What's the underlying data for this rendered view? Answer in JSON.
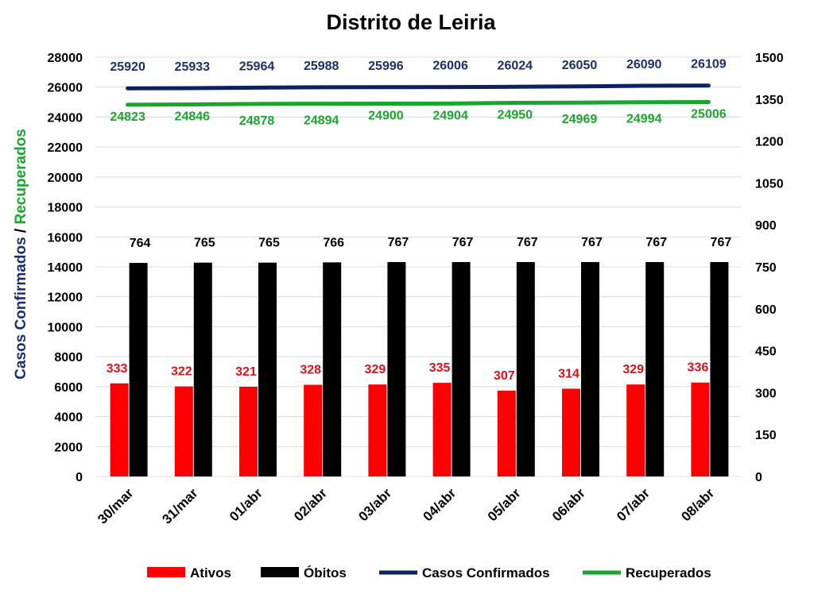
{
  "chart_data": {
    "type": "bar",
    "title": "Distrito de Leiria",
    "ylabel_parts": [
      "Casos Confirmados",
      " / ",
      "Recuperados"
    ],
    "categories": [
      "30/mar",
      "31/mar",
      "01/abr",
      "02/abr",
      "03/abr",
      "04/abr",
      "05/abr",
      "06/abr",
      "07/abr",
      "08/abr"
    ],
    "left_axis": {
      "ylim": [
        0,
        28000
      ],
      "ticks": [
        "28000",
        "26000",
        "24000",
        "22000",
        "20000",
        "18000",
        "16000",
        "14000",
        "12000",
        "10000",
        "8000",
        "6000",
        "4000",
        "2000",
        "0"
      ]
    },
    "right_axis": {
      "ylim": [
        0,
        1500
      ],
      "ticks": [
        "1500",
        "1350",
        "1200",
        "1050",
        "900",
        "750",
        "600",
        "450",
        "300",
        "150",
        "0"
      ]
    },
    "series": [
      {
        "name": "Ativos",
        "kind": "bar",
        "axis": "right",
        "color": "#ff0000",
        "label_color": "#e0101a",
        "values": [
          333,
          322,
          321,
          328,
          329,
          335,
          307,
          314,
          329,
          336
        ]
      },
      {
        "name": "Óbitos",
        "kind": "bar",
        "axis": "right",
        "color": "#000000",
        "label_color": "#000000",
        "values": [
          764,
          765,
          765,
          766,
          767,
          767,
          767,
          767,
          767,
          767
        ]
      },
      {
        "name": "Casos Confirmados",
        "kind": "line",
        "axis": "left",
        "color": "#0b2163",
        "label_color": "#1b2f6e",
        "values": [
          25920,
          25933,
          25964,
          25988,
          25996,
          26006,
          26024,
          26050,
          26090,
          26109
        ]
      },
      {
        "name": "Recuperados",
        "kind": "line",
        "axis": "left",
        "color": "#1aa52d",
        "label_color": "#1aa52d",
        "values": [
          24823,
          24846,
          24878,
          24894,
          24900,
          24904,
          24950,
          24969,
          24994,
          25006
        ]
      }
    ],
    "legend_position": "bottom",
    "grid": true
  }
}
